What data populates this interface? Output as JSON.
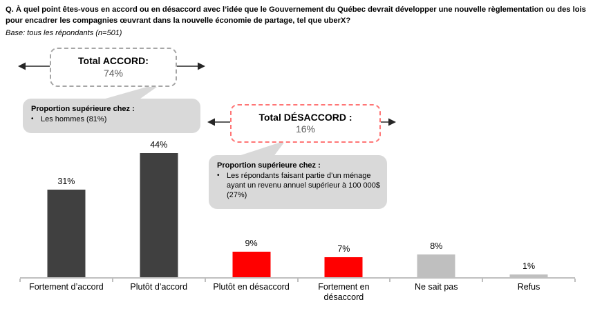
{
  "header": {
    "question": "Q. À quel point êtes-vous en accord ou en désaccord avec l’idée que le Gouvernement du Québec devrait développer une nouvelle règlementation ou des lois pour encadrer les compagnies œuvrant dans la nouvelle économie de partage, tel que uberX?",
    "base": "Base: tous les répondants (n=501)"
  },
  "summary_boxes": {
    "accord": {
      "title": "Total ACCORD:",
      "value": "74%"
    },
    "desaccord": {
      "title": "Total DÉSACCORD :",
      "value": "16%"
    }
  },
  "callouts": {
    "accord": {
      "title": "Proportion supérieure chez :",
      "bullet": "•",
      "items": [
        "Les hommes (81%)"
      ]
    },
    "desaccord": {
      "title": "Proportion supérieure chez :",
      "bullet": "•",
      "items": [
        "Les répondants faisant partie d’un ménage ayant un revenu annuel supérieur à 100 000$ (27%)"
      ]
    }
  },
  "chart_data": {
    "type": "bar",
    "categories": [
      "Fortement d’accord",
      "Plutôt d’accord",
      "Plutôt en désaccord",
      "Fortement en désaccord",
      "Ne sait pas",
      "Refus"
    ],
    "values": [
      31,
      44,
      9,
      7,
      8,
      1
    ],
    "value_labels": [
      "31%",
      "44%",
      "9%",
      "7%",
      "8%",
      "1%"
    ],
    "bar_colors": [
      "#404040",
      "#404040",
      "#FF0000",
      "#FF0000",
      "#BFBFBF",
      "#BFBFBF"
    ],
    "title": "",
    "xlabel": "",
    "ylabel": "",
    "ylim": [
      0,
      45
    ],
    "grid": false,
    "legend": false,
    "totals": {
      "accord_pct": 74,
      "desaccord_pct": 16
    }
  },
  "colors": {
    "bar_dark": "#404040",
    "bar_red": "#FF0000",
    "bar_gray": "#BFBFBF",
    "callout_bg": "#D9D9D9",
    "accord_border": "#A6A6A6",
    "desaccord_border": "#FF7575",
    "axis": "#BFBFBF",
    "summary_value_text": "#595959",
    "arrow": "#262626"
  }
}
